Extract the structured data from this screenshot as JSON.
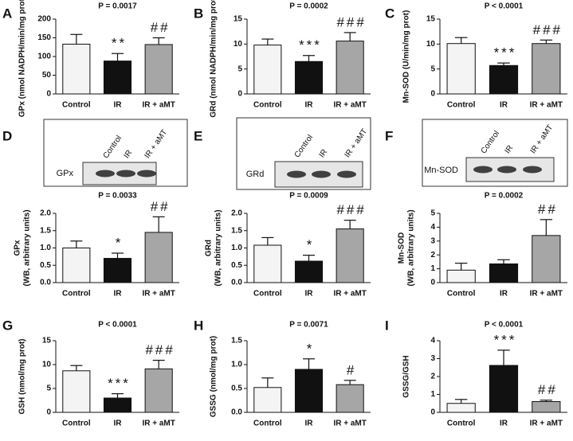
{
  "chart_data": [
    {
      "type": "bar",
      "panel": "A",
      "title": "P = 0.0017",
      "ylabel": [
        "GPx (nmol NADPH/min/mg prot)"
      ],
      "categories": [
        "Control",
        "IR",
        "IR + aMT"
      ],
      "values": [
        133,
        88,
        132
      ],
      "errors": [
        26,
        20,
        18
      ],
      "colors": [
        "#f4f4f4",
        "#111111",
        "#a6a6a6"
      ],
      "annotations": [
        null,
        "**",
        "##"
      ],
      "ylim": [
        0,
        200
      ],
      "yticks": [
        0,
        50,
        100,
        150,
        200
      ]
    },
    {
      "type": "bar",
      "panel": "B",
      "title": "P = 0.0002",
      "ylabel": [
        "GRd (nmol NADPH/min/mg prot)"
      ],
      "categories": [
        "Control",
        "IR",
        "IR + aMT"
      ],
      "values": [
        9.8,
        6.5,
        10.6
      ],
      "errors": [
        1.2,
        1.2,
        1.7
      ],
      "colors": [
        "#f4f4f4",
        "#111111",
        "#a6a6a6"
      ],
      "annotations": [
        null,
        "***",
        "###"
      ],
      "ylim": [
        0,
        15
      ],
      "yticks": [
        0,
        5,
        10,
        15
      ]
    },
    {
      "type": "bar",
      "panel": "C",
      "title": "P < 0.0001",
      "ylabel": [
        "Mn-SOD (U/min/mg prot)"
      ],
      "categories": [
        "Control",
        "IR",
        "IR + aMT"
      ],
      "values": [
        10.1,
        5.7,
        10.1
      ],
      "errors": [
        1.2,
        0.5,
        0.7
      ],
      "colors": [
        "#f4f4f4",
        "#111111",
        "#a6a6a6"
      ],
      "annotations": [
        null,
        "***",
        "###"
      ],
      "ylim": [
        0,
        15
      ],
      "yticks": [
        0,
        5,
        10,
        15
      ]
    },
    {
      "type": "bar",
      "panel": "D",
      "blot": {
        "label": "GPx",
        "lanes": [
          "Control",
          "IR",
          "IR + aMT"
        ]
      },
      "title": "P = 0.0033",
      "ylabel": [
        "GPx",
        "(WB, arbitrary units)"
      ],
      "categories": [
        "Control",
        "IR",
        "IR + aMT"
      ],
      "values": [
        1.0,
        0.7,
        1.45
      ],
      "errors": [
        0.2,
        0.15,
        0.45
      ],
      "colors": [
        "#f4f4f4",
        "#111111",
        "#a6a6a6"
      ],
      "annotations": [
        null,
        "*",
        "##"
      ],
      "ylim": [
        0,
        2
      ],
      "yticks": [
        {
          "value": 0,
          "label": "0.0"
        },
        0.5,
        {
          "value": 1,
          "label": "1.0"
        },
        1.5,
        {
          "value": 2,
          "label": "2.0"
        }
      ]
    },
    {
      "type": "bar",
      "panel": "E",
      "blot": {
        "label": "GRd",
        "lanes": [
          "Control",
          "IR",
          "IR + aMT"
        ]
      },
      "title": "P = 0.0009",
      "ylabel": [
        "GRd",
        "(WB, arbitrary units)"
      ],
      "categories": [
        "Control",
        "IR",
        "IR + aMT"
      ],
      "values": [
        1.08,
        0.62,
        1.55
      ],
      "errors": [
        0.22,
        0.17,
        0.25
      ],
      "colors": [
        "#f4f4f4",
        "#111111",
        "#a6a6a6"
      ],
      "annotations": [
        null,
        "*",
        "###"
      ],
      "ylim": [
        0,
        2
      ],
      "yticks": [
        {
          "value": 0,
          "label": "0.0"
        },
        0.5,
        {
          "value": 1,
          "label": "1.0"
        },
        1.5,
        {
          "value": 2,
          "label": "2.0"
        }
      ]
    },
    {
      "type": "bar",
      "panel": "F",
      "blot": {
        "label": "Mn-SOD",
        "lanes": [
          "Control",
          "IR",
          "IR + aMT"
        ]
      },
      "title": "P = 0.0002",
      "ylabel": [
        "Mn-SOD",
        "(WB, arbitrary units)"
      ],
      "categories": [
        "Control",
        "IR",
        "IR + aMT"
      ],
      "values": [
        0.9,
        1.35,
        3.4
      ],
      "errors": [
        0.5,
        0.3,
        1.15
      ],
      "colors": [
        "#f4f4f4",
        "#111111",
        "#a6a6a6"
      ],
      "annotations": [
        null,
        null,
        "##"
      ],
      "ylim": [
        0,
        5
      ],
      "yticks": [
        0,
        1,
        2,
        3,
        4,
        5
      ]
    },
    {
      "type": "bar",
      "panel": "G",
      "title": "P < 0.0001",
      "ylabel": [
        "GSH (nmol/mg prot)"
      ],
      "categories": [
        "Control",
        "IR",
        "IR + aMT"
      ],
      "values": [
        8.7,
        3.0,
        9.1
      ],
      "errors": [
        1.1,
        0.9,
        1.8
      ],
      "colors": [
        "#f4f4f4",
        "#111111",
        "#a6a6a6"
      ],
      "annotations": [
        null,
        "***",
        "###"
      ],
      "ylim": [
        0,
        15
      ],
      "yticks": [
        0,
        5,
        10,
        15
      ]
    },
    {
      "type": "bar",
      "panel": "H",
      "title": "P = 0.0071",
      "ylabel": [
        "GSSG (nmol/mg prot)"
      ],
      "categories": [
        "Control",
        "IR",
        "IR + aMT"
      ],
      "values": [
        0.52,
        0.9,
        0.58
      ],
      "errors": [
        0.2,
        0.22,
        0.09
      ],
      "colors": [
        "#f4f4f4",
        "#111111",
        "#a6a6a6"
      ],
      "annotations": [
        null,
        "*",
        "#"
      ],
      "ylim": [
        0,
        1.5
      ],
      "yticks": [
        {
          "value": 0,
          "label": "0.0"
        },
        0.5,
        {
          "value": 1,
          "label": "1.0"
        },
        1.5
      ]
    },
    {
      "type": "bar",
      "panel": "I",
      "title": "P < 0.0001",
      "ylabel": [
        "GSSG/GSH"
      ],
      "categories": [
        "Control",
        "IR",
        "IR + aMT"
      ],
      "values": [
        0.5,
        2.62,
        0.6
      ],
      "errors": [
        0.22,
        0.85,
        0.08
      ],
      "colors": [
        "#f4f4f4",
        "#111111",
        "#a6a6a6"
      ],
      "annotations": [
        null,
        "***",
        "##"
      ],
      "ylim": [
        0,
        4
      ],
      "yticks": [
        0,
        1,
        2,
        3,
        4
      ]
    }
  ]
}
